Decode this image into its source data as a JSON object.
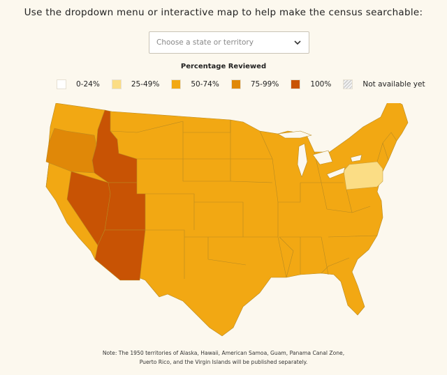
{
  "header": {
    "title": "Use the dropdown menu or interactive map to help make the census searchable:"
  },
  "state_select": {
    "placeholder": "Choose a state or territory",
    "icon": "chevron-down-icon"
  },
  "legend": {
    "title": "Percentage Reviewed",
    "items": [
      {
        "label": "0-24%",
        "color": "#ffffff"
      },
      {
        "label": "25-49%",
        "color": "#fbdd85"
      },
      {
        "label": "50-74%",
        "color": "#f2a813"
      },
      {
        "label": "75-99%",
        "color": "#e08808"
      },
      {
        "label": "100%",
        "color": "#c85304"
      },
      {
        "label": "Not available yet",
        "color": "hatched-gray"
      }
    ]
  },
  "map": {
    "regions": {
      "washington": "50-74%",
      "oregon": "75-99%",
      "california": "50-74%",
      "idaho": "100%",
      "nevada": "100%",
      "utah": "100%",
      "arizona": "100%",
      "montana": "50-74%",
      "wyoming": "50-74%",
      "colorado": "50-74%",
      "new_mexico": "50-74%",
      "texas": "50-74%",
      "pennsylvania": "25-49%",
      "all_other_states": "50-74%"
    }
  },
  "note": {
    "line1": "Note: The 1950 territories of Alaska, Hawaii, American Samoa, Guam, Panama Canal Zone,",
    "line2": "Puerto Rico, and the Virgin Islands will be published separately."
  }
}
